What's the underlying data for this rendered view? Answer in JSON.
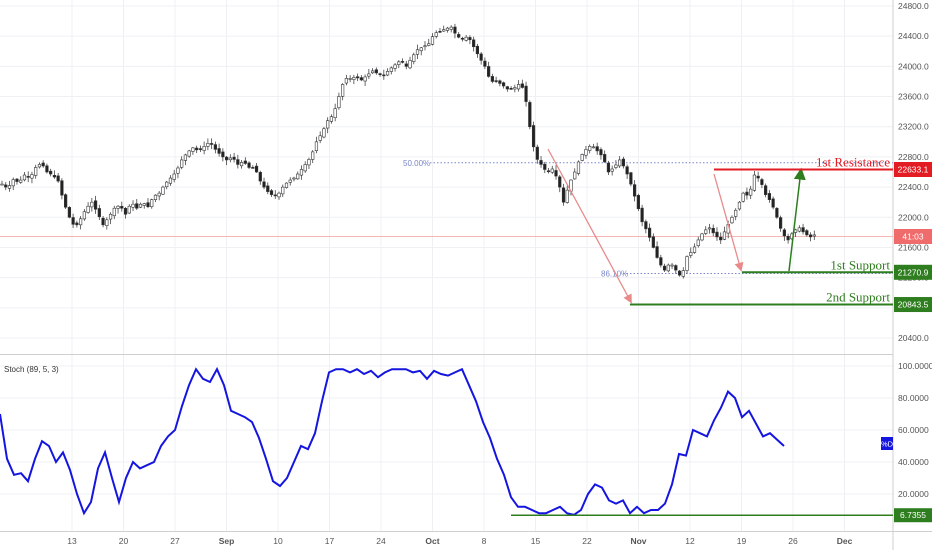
{
  "chart_data": [
    {
      "type": "candlestick",
      "ylim": [
        20200,
        24900
      ],
      "y_ticks": [
        "20400.0",
        "20800.0",
        "21200.0",
        "21600.0",
        "22000.0",
        "22400.0",
        "22800.0",
        "23200.0",
        "23600.0",
        "24000.0",
        "24400.0",
        "24800.0"
      ],
      "x_ticks": [
        "13",
        "20",
        "27",
        "Sep",
        "10",
        "17",
        "24",
        "Oct",
        "8",
        "15",
        "22",
        "Nov",
        "12",
        "19",
        "26",
        "Dec"
      ],
      "close_path": [
        [
          0,
          22440
        ],
        [
          0.5,
          22380
        ],
        [
          1,
          22500
        ],
        [
          1.5,
          22460
        ],
        [
          2,
          22560
        ],
        [
          2.5,
          22520
        ],
        [
          3,
          22660
        ],
        [
          3.5,
          22720
        ],
        [
          4,
          22600
        ],
        [
          4.5,
          22560
        ],
        [
          5,
          22480
        ],
        [
          5.5,
          22200
        ],
        [
          6,
          22000
        ],
        [
          6.5,
          21860
        ],
        [
          7,
          21980
        ],
        [
          7.5,
          22120
        ],
        [
          8,
          22200
        ],
        [
          8.5,
          22060
        ],
        [
          9,
          21900
        ],
        [
          9.5,
          22000
        ],
        [
          10,
          22120
        ],
        [
          10.5,
          22160
        ],
        [
          11,
          22040
        ],
        [
          11.5,
          22200
        ],
        [
          12,
          22120
        ],
        [
          12.5,
          22200
        ],
        [
          13,
          22140
        ],
        [
          13.5,
          22280
        ],
        [
          14,
          22320
        ],
        [
          14.5,
          22440
        ],
        [
          15,
          22520
        ],
        [
          15.5,
          22600
        ],
        [
          16,
          22760
        ],
        [
          16.5,
          22860
        ],
        [
          17,
          22920
        ],
        [
          17.5,
          22880
        ],
        [
          18,
          22940
        ],
        [
          18.5,
          23000
        ],
        [
          19,
          22900
        ],
        [
          19.5,
          22820
        ],
        [
          20,
          22760
        ],
        [
          20.5,
          22800
        ],
        [
          21,
          22700
        ],
        [
          21.5,
          22740
        ],
        [
          22,
          22660
        ],
        [
          22.5,
          22660
        ],
        [
          23,
          22480
        ],
        [
          23.5,
          22360
        ],
        [
          24,
          22300
        ],
        [
          24.5,
          22280
        ],
        [
          25,
          22400
        ],
        [
          25.5,
          22480
        ],
        [
          26,
          22520
        ],
        [
          26.5,
          22600
        ],
        [
          27,
          22700
        ],
        [
          27.5,
          22800
        ],
        [
          28,
          23000
        ],
        [
          28.5,
          23120
        ],
        [
          29,
          23280
        ],
        [
          29.5,
          23360
        ],
        [
          30,
          23600
        ],
        [
          30.5,
          23840
        ],
        [
          31,
          23840
        ],
        [
          31.5,
          23860
        ],
        [
          32,
          23820
        ],
        [
          32.5,
          23880
        ],
        [
          33,
          23940
        ],
        [
          33.5,
          23900
        ],
        [
          34,
          23880
        ],
        [
          34.5,
          23960
        ],
        [
          35,
          24020
        ],
        [
          35.5,
          24080
        ],
        [
          36,
          24000
        ],
        [
          36.5,
          24120
        ],
        [
          37,
          24220
        ],
        [
          37.5,
          24260
        ],
        [
          38,
          24300
        ],
        [
          38.5,
          24440
        ],
        [
          39,
          24460
        ],
        [
          39.5,
          24500
        ],
        [
          40,
          24520
        ],
        [
          40.5,
          24400
        ],
        [
          41,
          24360
        ],
        [
          41.5,
          24400
        ],
        [
          42,
          24260
        ],
        [
          42.5,
          24120
        ],
        [
          43,
          24000
        ],
        [
          43.5,
          23800
        ],
        [
          44,
          23800
        ],
        [
          44.5,
          23760
        ],
        [
          45,
          23700
        ],
        [
          45.5,
          23700
        ],
        [
          46,
          23760
        ],
        [
          46.5,
          23700
        ],
        [
          47,
          23200
        ],
        [
          47.5,
          22800
        ],
        [
          48,
          22700
        ],
        [
          48.5,
          22600
        ],
        [
          49,
          22640
        ],
        [
          49.5,
          22500
        ],
        [
          50,
          22200
        ],
        [
          50.5,
          22440
        ],
        [
          51,
          22600
        ],
        [
          51.5,
          22800
        ],
        [
          52,
          22900
        ],
        [
          52.5,
          22960
        ],
        [
          53,
          22880
        ],
        [
          53.5,
          22800
        ],
        [
          54,
          22600
        ],
        [
          54.5,
          22660
        ],
        [
          55,
          22760
        ],
        [
          55.5,
          22640
        ],
        [
          56,
          22440
        ],
        [
          56.5,
          22200
        ],
        [
          57,
          21940
        ],
        [
          57.5,
          21800
        ],
        [
          58,
          21600
        ],
        [
          58.5,
          21400
        ],
        [
          59,
          21300
        ],
        [
          59.5,
          21400
        ],
        [
          60,
          21300
        ],
        [
          60.5,
          21200
        ],
        [
          61,
          21480
        ],
        [
          61.5,
          21560
        ],
        [
          62,
          21700
        ],
        [
          62.5,
          21820
        ],
        [
          63,
          21860
        ],
        [
          63.5,
          21760
        ],
        [
          64,
          21700
        ],
        [
          64.5,
          21860
        ],
        [
          65,
          22000
        ],
        [
          65.5,
          22140
        ],
        [
          66,
          22320
        ],
        [
          66.5,
          22280
        ],
        [
          67,
          22560
        ],
        [
          67.5,
          22500
        ],
        [
          68,
          22300
        ],
        [
          68.5,
          22200
        ],
        [
          69,
          22000
        ],
        [
          69.5,
          21780
        ],
        [
          70,
          21700
        ],
        [
          70.5,
          21820
        ],
        [
          71,
          21860
        ],
        [
          71.5,
          21780
        ],
        [
          72,
          21740
        ],
        [
          72.5,
          21780
        ]
      ],
      "annotations": {
        "fib_label_upper": "50.00%",
        "fib_label_lower": "86.10%",
        "current_price_tag": "41:03"
      },
      "levels": [
        {
          "label": "1st Resistance",
          "value": "22633.1",
          "y": 22633.1,
          "color": "#e31b23"
        },
        {
          "label": "1st Support",
          "value": "21270.9",
          "y": 21270.9,
          "color": "#2e7d1e"
        },
        {
          "label": "2nd Support",
          "value": "20843.5",
          "y": 20843.5,
          "color": "#2e7d1e"
        }
      ],
      "current_price": 21745
    },
    {
      "type": "line",
      "indicator_label": "Stoch (89, 5, 3)",
      "ylim": [
        4,
        104
      ],
      "y_ticks": [
        "20.0000",
        "40.0000",
        "60.0000",
        "80.0000",
        "100.0000"
      ],
      "badge": "%D",
      "level": {
        "value": "6.7355",
        "y": 6.7355
      },
      "series": [
        {
          "color": "#1515e0",
          "values": [
            [
              0,
              70
            ],
            [
              0.5,
              42
            ],
            [
              1,
              32
            ],
            [
              1.5,
              33
            ],
            [
              2,
              28
            ],
            [
              2.5,
              42
            ],
            [
              3,
              53
            ],
            [
              3.5,
              50
            ],
            [
              4,
              40
            ],
            [
              4.5,
              46
            ],
            [
              5,
              35
            ],
            [
              5.5,
              20
            ],
            [
              6,
              8
            ],
            [
              6.5,
              15
            ],
            [
              7,
              36
            ],
            [
              7.5,
              46
            ],
            [
              8,
              30
            ],
            [
              8.5,
              15
            ],
            [
              9,
              30
            ],
            [
              9.5,
              40
            ],
            [
              10,
              36
            ],
            [
              10.5,
              38
            ],
            [
              11,
              40
            ],
            [
              11.5,
              50
            ],
            [
              12,
              56
            ],
            [
              12.5,
              60
            ],
            [
              13,
              75
            ],
            [
              13.5,
              88
            ],
            [
              14,
              98
            ],
            [
              14.5,
              92
            ],
            [
              15,
              90
            ],
            [
              15.5,
              98
            ],
            [
              16,
              88
            ],
            [
              16.5,
              72
            ],
            [
              17,
              70
            ],
            [
              17.5,
              68
            ],
            [
              18,
              65
            ],
            [
              18.5,
              55
            ],
            [
              19,
              42
            ],
            [
              19.5,
              28
            ],
            [
              20,
              25
            ],
            [
              20.5,
              30
            ],
            [
              21,
              40
            ],
            [
              21.5,
              50
            ],
            [
              22,
              48
            ],
            [
              22.5,
              58
            ],
            [
              23,
              78
            ],
            [
              23.5,
              96
            ],
            [
              24,
              98
            ],
            [
              24.5,
              98
            ],
            [
              25,
              96
            ],
            [
              25.5,
              98
            ],
            [
              26,
              95
            ],
            [
              26.5,
              97
            ],
            [
              27,
              93
            ],
            [
              27.5,
              96
            ],
            [
              28,
              98
            ],
            [
              28.5,
              98
            ],
            [
              29,
              98
            ],
            [
              29.5,
              96
            ],
            [
              30,
              97
            ],
            [
              30.5,
              92
            ],
            [
              31,
              97
            ],
            [
              31.5,
              95
            ],
            [
              32,
              94
            ],
            [
              32.5,
              96
            ],
            [
              33,
              98
            ],
            [
              33.5,
              88
            ],
            [
              34,
              78
            ],
            [
              34.5,
              65
            ],
            [
              35,
              55
            ],
            [
              35.5,
              42
            ],
            [
              36,
              32
            ],
            [
              36.5,
              18
            ],
            [
              37,
              12
            ],
            [
              37.5,
              12
            ],
            [
              38,
              10
            ],
            [
              38.5,
              8
            ],
            [
              39,
              8
            ],
            [
              39.5,
              10
            ],
            [
              40,
              12
            ],
            [
              40.5,
              8
            ],
            [
              41,
              7
            ],
            [
              41.5,
              10
            ],
            [
              42,
              20
            ],
            [
              42.5,
              26
            ],
            [
              43,
              24
            ],
            [
              43.5,
              16
            ],
            [
              44,
              14
            ],
            [
              44.5,
              16
            ],
            [
              45,
              8
            ],
            [
              45.5,
              12
            ],
            [
              46,
              8
            ],
            [
              46.5,
              10
            ],
            [
              47,
              10
            ],
            [
              47.5,
              14
            ],
            [
              48,
              26
            ],
            [
              48.5,
              45
            ],
            [
              49,
              44
            ],
            [
              49.5,
              60
            ],
            [
              50,
              58
            ],
            [
              50.5,
              56
            ],
            [
              51,
              66
            ],
            [
              51.5,
              74
            ],
            [
              52,
              84
            ],
            [
              52.5,
              80
            ],
            [
              53,
              68
            ],
            [
              53.5,
              72
            ],
            [
              54,
              64
            ],
            [
              54.5,
              56
            ],
            [
              55,
              58
            ],
            [
              55.5,
              54
            ],
            [
              56,
              50
            ]
          ]
        }
      ]
    }
  ]
}
